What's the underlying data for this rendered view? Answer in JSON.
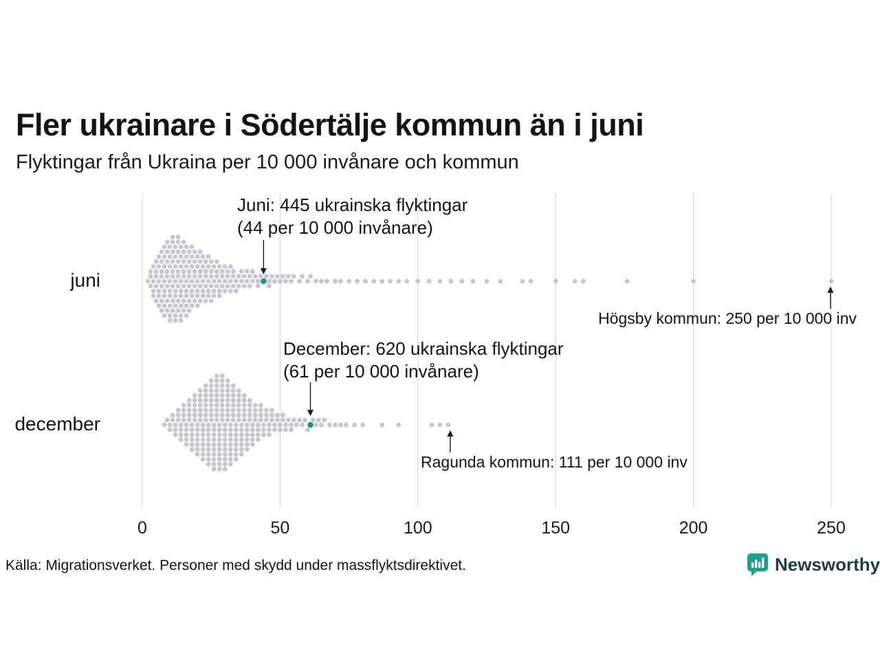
{
  "title": "Fler ukrainare i Södertälje kommun än i juni",
  "subtitle": "Flyktingar från Ukraina per 10 000 invånare och kommun",
  "source": "Källa: Migrationsverket. Personer med skydd under massflyktsdirektivet.",
  "brand": {
    "name": "Newsworthy",
    "color": "#17a28f",
    "text_color": "#1b3c53"
  },
  "rows": [
    {
      "label": "juni"
    },
    {
      "label": "december"
    }
  ],
  "annotations": {
    "juni_highlight": {
      "line1": "Juni: 445 ukrainska flyktingar",
      "line2": "(44 per 10 000 invånare)",
      "value": 44
    },
    "hogsby": {
      "text": "Högsby kommun: 250 per 10 000 inv",
      "value": 250
    },
    "december_highlight": {
      "line1": "December: 620 ukrainska flyktingar",
      "line2": "(61 per 10 000 invånare)",
      "value": 61
    },
    "ragunda": {
      "text": "Ragunda kommun: 111 per 10 000 inv",
      "value": 111
    }
  },
  "chart_data": {
    "type": "scatter",
    "subtype": "beeswarm",
    "xlabel": "",
    "ylabel": "",
    "xlim": [
      0,
      250
    ],
    "ticks": [
      0,
      50,
      100,
      150,
      200,
      250
    ],
    "grid": true,
    "dot_color": "#bab7c8",
    "highlight_color": "#13998a",
    "categories": [
      "juni",
      "december"
    ],
    "series": [
      {
        "name": "juni",
        "highlight": 44,
        "highlight_label": "Juni: 445 ukrainska flyktingar (44 per 10 000 invånare)",
        "max_label": "Högsby kommun: 250 per 10 000 inv",
        "values": [
          2,
          3,
          3,
          3,
          4,
          4,
          4,
          4,
          5,
          5,
          5,
          5,
          5,
          6,
          6,
          6,
          6,
          6,
          6,
          7,
          7,
          7,
          7,
          7,
          7,
          7,
          8,
          8,
          8,
          8,
          8,
          8,
          8,
          8,
          9,
          9,
          9,
          9,
          9,
          9,
          9,
          9,
          10,
          10,
          10,
          10,
          10,
          10,
          10,
          10,
          10,
          11,
          11,
          11,
          11,
          11,
          11,
          11,
          11,
          11,
          12,
          12,
          12,
          12,
          12,
          12,
          12,
          12,
          12,
          13,
          13,
          13,
          13,
          13,
          13,
          13,
          13,
          13,
          14,
          14,
          14,
          14,
          14,
          14,
          14,
          14,
          14,
          15,
          15,
          15,
          15,
          15,
          15,
          15,
          15,
          16,
          16,
          16,
          16,
          16,
          16,
          16,
          16,
          17,
          17,
          17,
          17,
          17,
          17,
          17,
          18,
          18,
          18,
          18,
          18,
          18,
          18,
          19,
          19,
          19,
          19,
          19,
          19,
          20,
          20,
          20,
          20,
          20,
          20,
          21,
          21,
          21,
          21,
          21,
          21,
          22,
          22,
          22,
          22,
          22,
          23,
          23,
          23,
          23,
          23,
          24,
          24,
          24,
          24,
          24,
          25,
          25,
          25,
          25,
          25,
          26,
          26,
          26,
          26,
          27,
          27,
          27,
          27,
          28,
          28,
          28,
          28,
          29,
          29,
          29,
          30,
          30,
          30,
          31,
          31,
          31,
          32,
          32,
          32,
          33,
          33,
          33,
          34,
          34,
          35,
          35,
          36,
          36,
          37,
          37,
          38,
          38,
          39,
          39,
          40,
          40,
          41,
          42,
          42,
          43,
          44,
          45,
          46,
          46,
          47,
          48,
          49,
          50,
          51,
          52,
          53,
          54,
          55,
          57,
          58,
          60,
          61,
          63,
          65,
          67,
          70,
          72,
          75,
          78,
          81,
          84,
          87,
          90,
          93,
          96,
          100,
          104,
          108,
          112,
          116,
          120,
          125,
          130,
          138,
          141,
          150,
          157,
          160,
          176,
          200,
          250
        ]
      },
      {
        "name": "december",
        "highlight": 61,
        "highlight_label": "December: 620 ukrainska flyktingar (61 per 10 000 invånare)",
        "max_label": "Ragunda kommun: 111 per 10 000 inv",
        "values": [
          8,
          9,
          10,
          10,
          11,
          11,
          12,
          12,
          12,
          13,
          13,
          13,
          14,
          14,
          14,
          14,
          15,
          15,
          15,
          15,
          16,
          16,
          16,
          16,
          16,
          17,
          17,
          17,
          17,
          17,
          18,
          18,
          18,
          18,
          18,
          18,
          19,
          19,
          19,
          19,
          19,
          19,
          20,
          20,
          20,
          20,
          20,
          20,
          20,
          21,
          21,
          21,
          21,
          21,
          21,
          21,
          22,
          22,
          22,
          22,
          22,
          22,
          22,
          22,
          23,
          23,
          23,
          23,
          23,
          23,
          23,
          23,
          24,
          24,
          24,
          24,
          24,
          24,
          24,
          24,
          24,
          25,
          25,
          25,
          25,
          25,
          25,
          25,
          25,
          25,
          26,
          26,
          26,
          26,
          26,
          26,
          26,
          26,
          26,
          26,
          27,
          27,
          27,
          27,
          27,
          27,
          27,
          27,
          27,
          27,
          28,
          28,
          28,
          28,
          28,
          28,
          28,
          28,
          28,
          28,
          29,
          29,
          29,
          29,
          29,
          29,
          29,
          29,
          29,
          29,
          30,
          30,
          30,
          30,
          30,
          30,
          30,
          30,
          30,
          30,
          31,
          31,
          31,
          31,
          31,
          31,
          31,
          31,
          31,
          32,
          32,
          32,
          32,
          32,
          32,
          32,
          32,
          32,
          33,
          33,
          33,
          33,
          33,
          33,
          33,
          33,
          34,
          34,
          34,
          34,
          34,
          34,
          34,
          34,
          35,
          35,
          35,
          35,
          35,
          35,
          35,
          36,
          36,
          36,
          36,
          36,
          36,
          36,
          37,
          37,
          37,
          37,
          37,
          37,
          38,
          38,
          38,
          38,
          38,
          38,
          39,
          39,
          39,
          39,
          39,
          40,
          40,
          40,
          40,
          40,
          41,
          41,
          41,
          41,
          42,
          42,
          42,
          42,
          43,
          43,
          43,
          43,
          44,
          44,
          44,
          45,
          45,
          45,
          46,
          46,
          46,
          47,
          47,
          47,
          48,
          48,
          49,
          49,
          50,
          50,
          51,
          51,
          52,
          52,
          53,
          54,
          54,
          55,
          56,
          57,
          58,
          59,
          60,
          61,
          62,
          63,
          64,
          65,
          66,
          68,
          70,
          72,
          74,
          77,
          80,
          87,
          93,
          105,
          108,
          111
        ]
      }
    ]
  }
}
